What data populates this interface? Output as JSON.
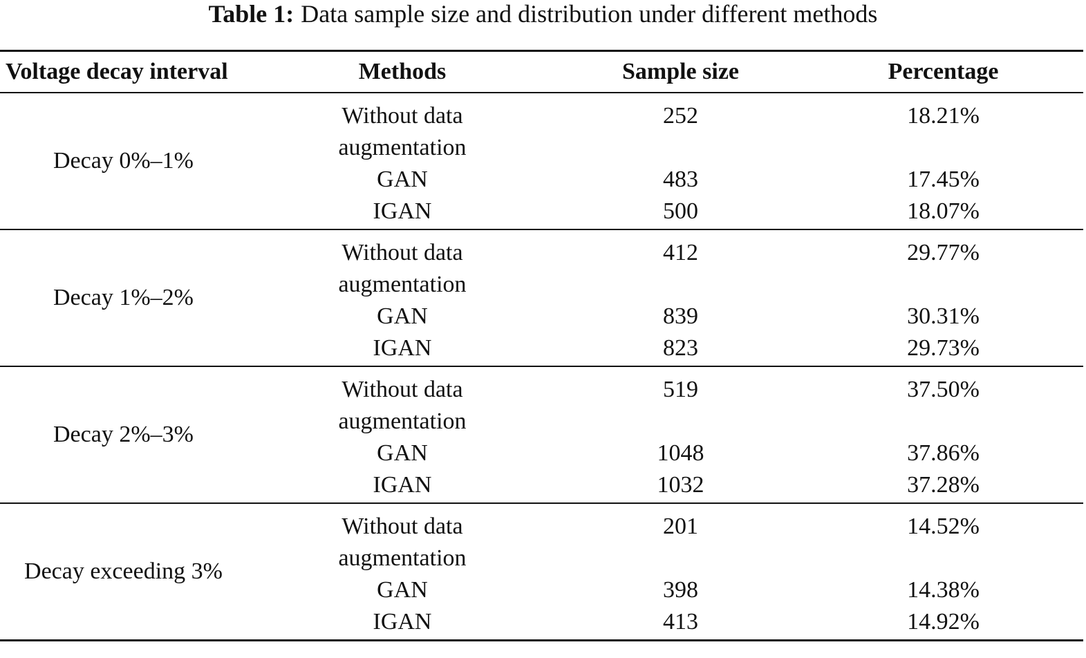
{
  "caption": {
    "label": "Table 1:",
    "text": "Data sample size and distribution under different methods"
  },
  "headers": [
    "Voltage decay interval",
    "Methods",
    "Sample size",
    "Percentage"
  ],
  "groups": [
    {
      "interval": "Decay 0%–1%",
      "rows": [
        {
          "method": "Without data augmentation",
          "sample_size": "252",
          "percentage": "18.21%"
        },
        {
          "method": "GAN",
          "sample_size": "483",
          "percentage": "17.45%"
        },
        {
          "method": "IGAN",
          "sample_size": "500",
          "percentage": "18.07%"
        }
      ]
    },
    {
      "interval": "Decay 1%–2%",
      "rows": [
        {
          "method": "Without data augmentation",
          "sample_size": "412",
          "percentage": "29.77%"
        },
        {
          "method": "GAN",
          "sample_size": "839",
          "percentage": "30.31%"
        },
        {
          "method": "IGAN",
          "sample_size": "823",
          "percentage": "29.73%"
        }
      ]
    },
    {
      "interval": "Decay 2%–3%",
      "rows": [
        {
          "method": "Without data augmentation",
          "sample_size": "519",
          "percentage": "37.50%"
        },
        {
          "method": "GAN",
          "sample_size": "1048",
          "percentage": "37.86%"
        },
        {
          "method": "IGAN",
          "sample_size": "1032",
          "percentage": "37.28%"
        }
      ]
    },
    {
      "interval": "Decay exceeding 3%",
      "rows": [
        {
          "method": "Without data augmentation",
          "sample_size": "201",
          "percentage": "14.52%"
        },
        {
          "method": "GAN",
          "sample_size": "398",
          "percentage": "14.38%"
        },
        {
          "method": "IGAN",
          "sample_size": "413",
          "percentage": "14.92%"
        }
      ]
    }
  ]
}
